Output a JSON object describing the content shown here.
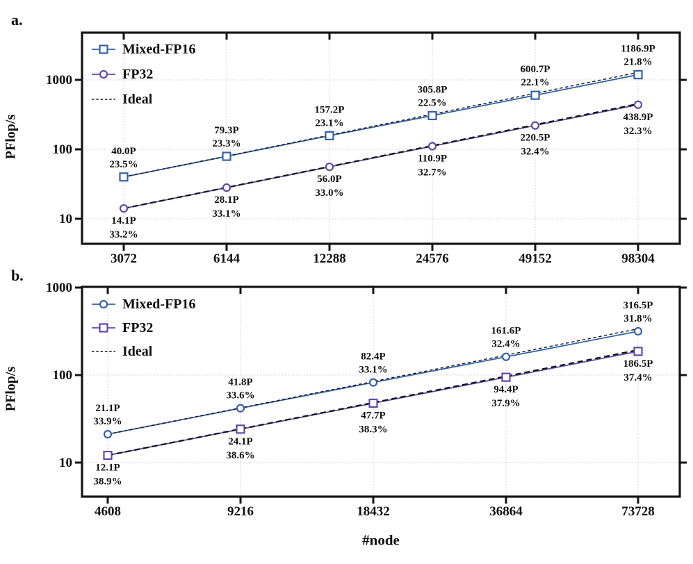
{
  "figure": {
    "xlabel": "#node",
    "background": "#ffffff",
    "text_color": "#111111"
  },
  "colors": {
    "fp16": "#3162a7",
    "fp32": "#5f4aa8",
    "ideal": "#161616",
    "grid": "#c9c9c9",
    "frame": "#141414"
  },
  "chart_data": [
    {
      "panel_label": "a.",
      "type": "line",
      "x_scale": "log2",
      "y_scale": "log10",
      "ylabel": "PFlop/s",
      "xlabel": "",
      "categories": [
        3072,
        6144,
        12288,
        24576,
        49152,
        98304
      ],
      "y_ticks": [
        10,
        100,
        1000
      ],
      "grid": true,
      "legend_position": "upper-left-inside",
      "ideal_label": "Ideal",
      "ideal_rule": "perfect doubling from first data point",
      "series": [
        {
          "name": "Mixed-FP16",
          "marker": "square",
          "color": "#3162a7",
          "label_side": "above",
          "values": [
            40.0,
            79.3,
            157.2,
            305.8,
            600.7,
            1186.9
          ],
          "point_labels": [
            [
              "40.0P",
              "23.5%"
            ],
            [
              "79.3P",
              "23.3%"
            ],
            [
              "157.2P",
              "23.1%"
            ],
            [
              "305.8P",
              "22.5%"
            ],
            [
              "600.7P",
              "22.1%"
            ],
            [
              "1186.9P",
              "21.8%"
            ]
          ]
        },
        {
          "name": "FP32",
          "marker": "circle",
          "color": "#5f4aa8",
          "label_side": "below",
          "values": [
            14.1,
            28.1,
            56.0,
            110.9,
            220.5,
            438.9
          ],
          "point_labels": [
            [
              "14.1P",
              "33.2%"
            ],
            [
              "28.1P",
              "33.1%"
            ],
            [
              "56.0P",
              "33.0%"
            ],
            [
              "110.9P",
              "32.7%"
            ],
            [
              "220.5P",
              "32.4%"
            ],
            [
              "438.9P",
              "32.3%"
            ]
          ]
        }
      ]
    },
    {
      "panel_label": "b.",
      "type": "line",
      "x_scale": "log2",
      "y_scale": "log10",
      "ylabel": "PFlop/s",
      "xlabel": "#node",
      "categories": [
        4608,
        9216,
        18432,
        36864,
        73728
      ],
      "y_ticks": [
        10,
        100,
        1000
      ],
      "grid": true,
      "legend_position": "upper-left-inside",
      "ideal_label": "Ideal",
      "ideal_rule": "perfect doubling from first data point",
      "series": [
        {
          "name": "Mixed-FP16",
          "marker": "circle",
          "color": "#3162a7",
          "label_side": "above",
          "values": [
            21.1,
            41.8,
            82.4,
            161.6,
            316.5
          ],
          "point_labels": [
            [
              "21.1P",
              "33.9%"
            ],
            [
              "41.8P",
              "33.6%"
            ],
            [
              "82.4P",
              "33.1%"
            ],
            [
              "161.6P",
              "32.4%"
            ],
            [
              "316.5P",
              "31.8%"
            ]
          ]
        },
        {
          "name": "FP32",
          "marker": "square",
          "color": "#5f4aa8",
          "label_side": "below",
          "values": [
            12.1,
            24.1,
            47.7,
            94.4,
            186.5
          ],
          "point_labels": [
            [
              "12.1P",
              "38.9%"
            ],
            [
              "24.1P",
              "38.6%"
            ],
            [
              "47.7P",
              "38.3%"
            ],
            [
              "94.4P",
              "37.9%"
            ],
            [
              "186.5P",
              "37.4%"
            ]
          ]
        }
      ]
    }
  ]
}
